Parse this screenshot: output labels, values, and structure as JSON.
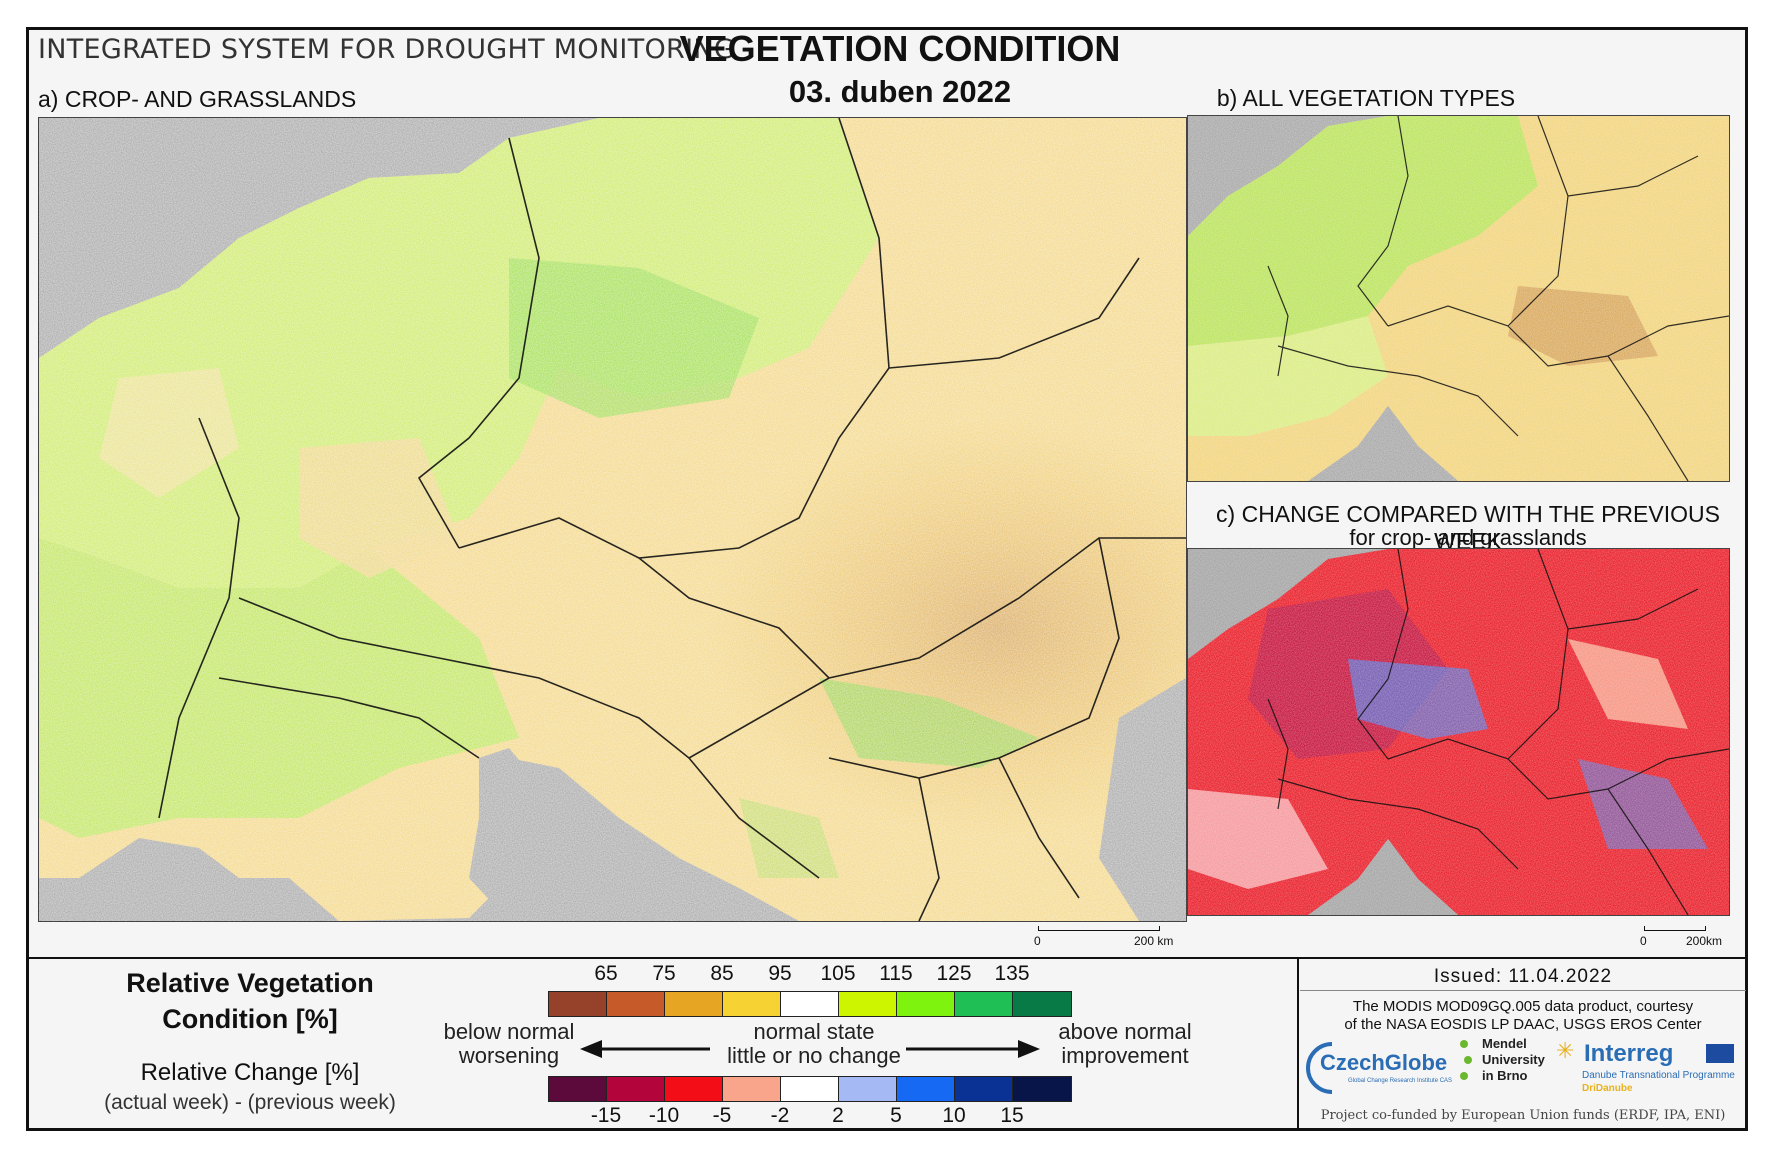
{
  "header": {
    "system_title": "INTEGRATED SYSTEM FOR DROUGHT MONITORING",
    "main_title": "VEGETATION CONDITION",
    "date": "03. duben 2022"
  },
  "panels": {
    "a": {
      "label": "a) CROP- AND GRASSLANDS"
    },
    "b": {
      "label": "b) ALL VEGETATION TYPES"
    },
    "c": {
      "label": "c) CHANGE COMPARED WITH THE PREVIOUS WEEK",
      "sublabel": "for crop- and grasslands"
    }
  },
  "scalebar_a": {
    "start": "0",
    "end": "200 km"
  },
  "scalebar_c": {
    "start": "0",
    "end": "200km"
  },
  "legend": {
    "title_line1": "Relative Vegetation",
    "title_line2": "Condition [%]",
    "change_title": "Relative Change [%]",
    "change_sub": "(actual week) - (previous week)",
    "condition_ticks": [
      "65",
      "75",
      "85",
      "95",
      "105",
      "115",
      "125",
      "135"
    ],
    "condition_colors": [
      "#96412a",
      "#c65a28",
      "#e6a624",
      "#f7d233",
      "#ffffff",
      "#cef500",
      "#7ef30e",
      "#1fbf56",
      "#077a45"
    ],
    "change_ticks": [
      "-15",
      "-10",
      "-5",
      "-2",
      "2",
      "5",
      "10",
      "15"
    ],
    "change_colors": [
      "#5c0a3c",
      "#b3043c",
      "#f20d17",
      "#f8a58c",
      "#ffffff",
      "#a5b9f5",
      "#1669f2",
      "#0a3294",
      "#071548"
    ],
    "left_desc": [
      "below normal",
      "worsening"
    ],
    "center_desc": [
      "normal state",
      "little or no change"
    ],
    "right_desc": [
      "above normal",
      "improvement"
    ]
  },
  "footer": {
    "issued": "Issued: 11.04.2022",
    "courtesy_line1": "The MODIS MOD09GQ.005 data product, courtesy",
    "courtesy_line2": "of the NASA EOSDIS LP DAAC, USGS EROS Center",
    "logo_czechglobe": "CzechGlobe",
    "logo_czechglobe_sub": "Global Change Research Institute CAS",
    "logo_mendel_1": "Mendel",
    "logo_mendel_2": "University",
    "logo_mendel_3": "in Brno",
    "logo_interreg": "Interreg",
    "logo_interreg_sub1": "Danube Transnational Programme",
    "logo_interreg_sub2": "DriDanube",
    "funded": "Project co-funded by European Union funds (ERDF, IPA, ENI)"
  }
}
